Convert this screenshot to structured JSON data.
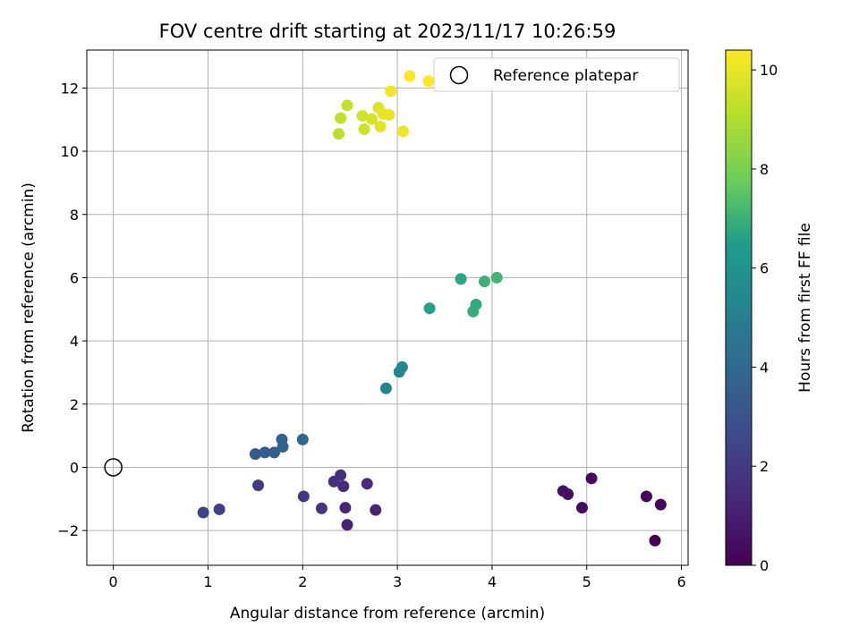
{
  "chart_data": {
    "type": "scatter",
    "title": "FOV centre drift starting at 2023/11/17 10:26:59",
    "xlabel": "Angular distance from reference (arcmin)",
    "ylabel": "Rotation from reference (arcmin)",
    "xlim": [
      -0.28,
      6.07
    ],
    "ylim": [
      -3.1,
      13.2
    ],
    "xticks": [
      0,
      1,
      2,
      3,
      4,
      5,
      6
    ],
    "yticks": [
      -2,
      0,
      2,
      4,
      6,
      8,
      10,
      12
    ],
    "xtick_labels": [
      "0",
      "1",
      "2",
      "3",
      "4",
      "5",
      "6"
    ],
    "ytick_labels": [
      "−2",
      "0",
      "2",
      "4",
      "6",
      "8",
      "10",
      "12"
    ],
    "grid": true,
    "colormap": "viridis",
    "colorbar": {
      "label": "Hours from first FF file",
      "range": [
        0,
        10.4
      ],
      "ticks": [
        0,
        2,
        4,
        6,
        8,
        10
      ],
      "tick_labels": [
        "0",
        "2",
        "4",
        "6",
        "8",
        "10"
      ]
    },
    "legend": {
      "placement": "top-right",
      "entries": [
        {
          "label": "Reference platepar",
          "marker": "open-circle"
        }
      ]
    },
    "reference_point": {
      "x": 0,
      "y": 0
    },
    "points": [
      {
        "x": 5.72,
        "y": -2.32,
        "c": 0.0
      },
      {
        "x": 5.63,
        "y": -0.92,
        "c": 0.1
      },
      {
        "x": 5.78,
        "y": -1.18,
        "c": 0.2
      },
      {
        "x": 5.05,
        "y": -0.35,
        "c": 0.3
      },
      {
        "x": 4.95,
        "y": -1.28,
        "c": 0.4
      },
      {
        "x": 4.8,
        "y": -0.85,
        "c": 0.5
      },
      {
        "x": 4.75,
        "y": -0.75,
        "c": 0.6
      },
      {
        "x": 2.47,
        "y": -1.82,
        "c": 1.1
      },
      {
        "x": 2.77,
        "y": -1.35,
        "c": 1.2
      },
      {
        "x": 2.45,
        "y": -1.28,
        "c": 1.3
      },
      {
        "x": 2.68,
        "y": -0.52,
        "c": 1.4
      },
      {
        "x": 2.43,
        "y": -0.6,
        "c": 1.5
      },
      {
        "x": 2.4,
        "y": -0.25,
        "c": 1.6
      },
      {
        "x": 2.33,
        "y": -0.45,
        "c": 1.7
      },
      {
        "x": 2.2,
        "y": -1.3,
        "c": 1.8
      },
      {
        "x": 2.01,
        "y": -0.92,
        "c": 1.9
      },
      {
        "x": 1.53,
        "y": -0.57,
        "c": 2.1
      },
      {
        "x": 1.12,
        "y": -1.33,
        "c": 2.2
      },
      {
        "x": 0.95,
        "y": -1.43,
        "c": 2.3
      },
      {
        "x": 1.5,
        "y": 0.42,
        "c": 3.3
      },
      {
        "x": 1.6,
        "y": 0.47,
        "c": 3.4
      },
      {
        "x": 1.7,
        "y": 0.47,
        "c": 3.5
      },
      {
        "x": 1.78,
        "y": 0.88,
        "c": 3.6
      },
      {
        "x": 1.79,
        "y": 0.65,
        "c": 3.7
      },
      {
        "x": 2.0,
        "y": 0.88,
        "c": 3.9
      },
      {
        "x": 2.88,
        "y": 2.5,
        "c": 5.3
      },
      {
        "x": 3.02,
        "y": 3.02,
        "c": 5.4
      },
      {
        "x": 3.05,
        "y": 3.17,
        "c": 5.5
      },
      {
        "x": 3.34,
        "y": 5.03,
        "c": 6.6
      },
      {
        "x": 3.67,
        "y": 5.96,
        "c": 6.7
      },
      {
        "x": 3.83,
        "y": 5.15,
        "c": 6.8
      },
      {
        "x": 3.8,
        "y": 4.93,
        "c": 6.9
      },
      {
        "x": 3.92,
        "y": 5.88,
        "c": 7.0
      },
      {
        "x": 4.05,
        "y": 6.0,
        "c": 7.1
      },
      {
        "x": 2.38,
        "y": 10.55,
        "c": 9.2
      },
      {
        "x": 2.4,
        "y": 11.05,
        "c": 9.3
      },
      {
        "x": 2.47,
        "y": 11.45,
        "c": 9.4
      },
      {
        "x": 2.65,
        "y": 10.7,
        "c": 9.5
      },
      {
        "x": 2.63,
        "y": 11.12,
        "c": 9.6
      },
      {
        "x": 2.73,
        "y": 11.02,
        "c": 9.7
      },
      {
        "x": 2.8,
        "y": 11.38,
        "c": 9.8
      },
      {
        "x": 2.82,
        "y": 10.78,
        "c": 9.9
      },
      {
        "x": 2.85,
        "y": 11.18,
        "c": 10.0
      },
      {
        "x": 2.91,
        "y": 11.15,
        "c": 10.0
      },
      {
        "x": 3.06,
        "y": 10.63,
        "c": 10.1
      },
      {
        "x": 2.93,
        "y": 11.9,
        "c": 10.2
      },
      {
        "x": 3.13,
        "y": 12.38,
        "c": 10.3
      },
      {
        "x": 3.33,
        "y": 12.22,
        "c": 10.4
      }
    ]
  }
}
